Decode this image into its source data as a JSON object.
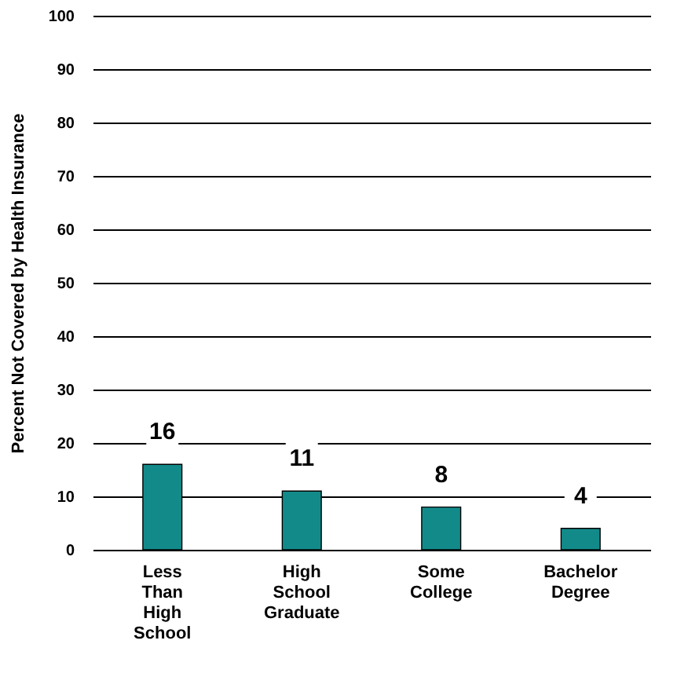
{
  "chart_data": {
    "type": "bar",
    "ylabel": "Percent Not Covered by Health Insurance",
    "categories": [
      "Less Than High School",
      "High School Graduate",
      "Some College",
      "Bachelor Degree"
    ],
    "values": [
      16,
      11,
      8,
      4
    ],
    "color": "#138a8a",
    "ylim": [
      0,
      100
    ],
    "yticks": [
      0,
      10,
      20,
      30,
      40,
      50,
      60,
      70,
      80,
      90,
      100
    ],
    "grid": "y",
    "data_labels": true
  }
}
